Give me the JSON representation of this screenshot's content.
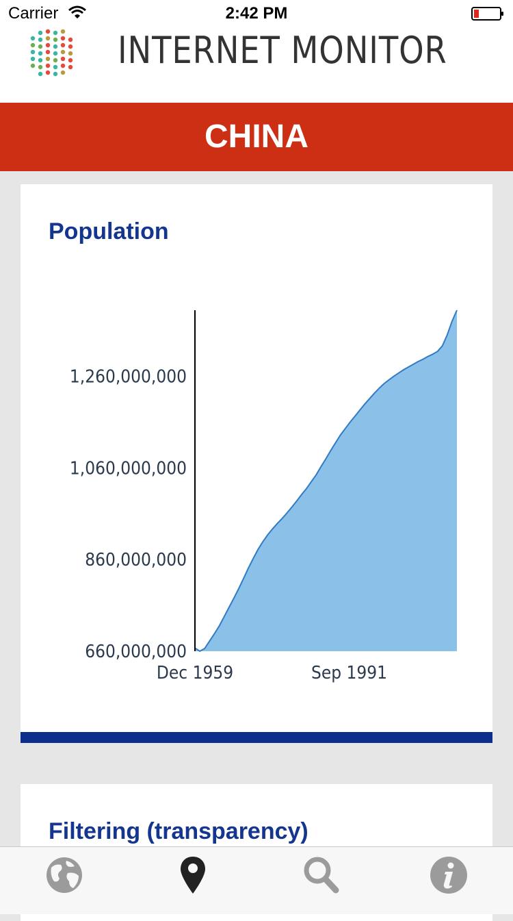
{
  "status": {
    "carrier": "Carrier",
    "time": "2:42 PM"
  },
  "header": {
    "title": "INTERNET MONITOR"
  },
  "banner": {
    "country": "CHINA"
  },
  "cards": [
    {
      "title": "Population"
    },
    {
      "title": "Filtering (transparency)"
    }
  ],
  "chart_data": {
    "type": "area",
    "title": "Population",
    "xlabel": "",
    "ylabel": "",
    "x_ticks": [
      "Dec 1959",
      "Sep 1991"
    ],
    "y_ticks": [
      660000000,
      860000000,
      1060000000,
      1260000000
    ],
    "y_tick_labels": [
      "660,000,000",
      "860,000,000",
      "1,060,000,000",
      "1,260,000,000"
    ],
    "ylim": [
      660000000,
      1404000000
    ],
    "x": [
      1959.9,
      1960.9,
      1961.9,
      1962.9,
      1963.9,
      1964.9,
      1965.9,
      1966.9,
      1967.9,
      1968.9,
      1969.9,
      1970.9,
      1971.9,
      1972.9,
      1973.9,
      1974.9,
      1975.9,
      1976.9,
      1977.9,
      1978.9,
      1979.9,
      1980.9,
      1981.9,
      1982.9,
      1983.9,
      1984.9,
      1985.9,
      1986.9,
      1987.9,
      1988.9,
      1989.9,
      1990.9,
      1991.9,
      1992.9,
      1993.9,
      1994.9,
      1995.9,
      1996.9,
      1997.9,
      1998.9,
      1999.9,
      2000.9,
      2001.9,
      2002.9,
      2003.9,
      2004.9,
      2005.9,
      2006.9,
      2007.9,
      2008.9,
      2009.9,
      2010.9,
      2011.9,
      2012.9,
      2013.9
    ],
    "values": [
      667000000,
      660000000,
      666000000,
      682000000,
      698000000,
      715000000,
      735000000,
      755000000,
      775000000,
      796000000,
      818000000,
      841000000,
      862000000,
      882000000,
      899000000,
      914000000,
      927000000,
      939000000,
      950000000,
      962000000,
      975000000,
      988000000,
      1002000000,
      1015000000,
      1030000000,
      1045000000,
      1063000000,
      1080000000,
      1098000000,
      1115000000,
      1132000000,
      1146000000,
      1160000000,
      1173000000,
      1186000000,
      1199000000,
      1211000000,
      1223000000,
      1234000000,
      1244000000,
      1252000000,
      1260000000,
      1267000000,
      1274000000,
      1280000000,
      1286000000,
      1292000000,
      1297000000,
      1303000000,
      1308000000,
      1314000000,
      1326000000,
      1350000000,
      1380000000,
      1404000000
    ],
    "colors": {
      "fill": "#8bc0e8",
      "line": "#2e7cc4",
      "axis": "#000000"
    }
  },
  "tabs": [
    {
      "name": "globe",
      "active": false
    },
    {
      "name": "map-pin",
      "active": true
    },
    {
      "name": "search",
      "active": false
    },
    {
      "name": "info",
      "active": false
    }
  ],
  "colors": {
    "banner": "#cc2f14",
    "card_title": "#14368f",
    "accent_bar": "#0d2f8c",
    "tab_active": "#222222",
    "tab_inactive": "#9b9b9b"
  }
}
